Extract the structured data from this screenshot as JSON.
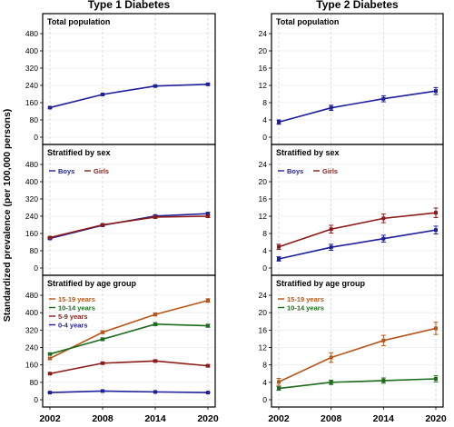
{
  "figure": {
    "shared_ylabel": "Standardized prevalence (per 100,000 persons)",
    "x_ticks": [
      "2002",
      "2008",
      "2014",
      "2020"
    ]
  },
  "chart_data": [
    {
      "type": "line",
      "column_title": "Type 1 Diabetes",
      "title": "Total population",
      "x": [
        2002,
        2008,
        2014,
        2020
      ],
      "ylim": [
        0,
        480
      ],
      "yticks": [
        0,
        80,
        160,
        240,
        320,
        400,
        480
      ],
      "grid": true,
      "legend": "none",
      "series": [
        {
          "name": "",
          "color": "#1f1f9a",
          "values": [
            137,
            198,
            237,
            245
          ],
          "err": [
            3,
            3,
            4,
            4
          ]
        }
      ]
    },
    {
      "type": "line",
      "title": "Stratified by sex",
      "x": [
        2002,
        2008,
        2014,
        2020
      ],
      "ylim": [
        0,
        480
      ],
      "yticks": [
        0,
        80,
        160,
        240,
        320,
        400,
        480
      ],
      "grid": true,
      "legend": "top-left",
      "series": [
        {
          "name": "Boys",
          "color": "#1f1f9a",
          "values": [
            137,
            198,
            241,
            252
          ],
          "err": [
            4,
            4,
            5,
            6
          ]
        },
        {
          "name": "Girls",
          "color": "#8b1a1a",
          "values": [
            141,
            200,
            236,
            240
          ],
          "err": [
            4,
            4,
            5,
            6
          ]
        }
      ]
    },
    {
      "type": "line",
      "title": "Stratified by age group",
      "x": [
        2002,
        2008,
        2014,
        2020
      ],
      "ylim": [
        0,
        480
      ],
      "yticks": [
        0,
        80,
        160,
        240,
        320,
        400,
        480
      ],
      "grid": true,
      "legend": "top-left",
      "series": [
        {
          "name": "15-19 years",
          "color": "#b5571a",
          "values": [
            190,
            310,
            392,
            456
          ],
          "err": [
            5,
            6,
            7,
            8
          ]
        },
        {
          "name": "10-14 years",
          "color": "#1d6b1d",
          "values": [
            210,
            278,
            347,
            340
          ],
          "err": [
            5,
            6,
            7,
            7
          ]
        },
        {
          "name": "5-9 years",
          "color": "#8b1a1a",
          "values": [
            120,
            168,
            178,
            156
          ],
          "err": [
            4,
            4,
            5,
            5
          ]
        },
        {
          "name": "0-4 years",
          "color": "#1f1f9a",
          "values": [
            33,
            40,
            36,
            33
          ],
          "err": [
            2,
            2,
            2,
            2
          ]
        }
      ]
    },
    {
      "type": "line",
      "column_title": "Type 2 Diabetes",
      "title": "Total population",
      "x": [
        2002,
        2008,
        2014,
        2020
      ],
      "ylim": [
        0,
        24
      ],
      "yticks": [
        0,
        4,
        8,
        12,
        16,
        20,
        24
      ],
      "grid": true,
      "legend": "none",
      "series": [
        {
          "name": "",
          "color": "#1f1f9a",
          "values": [
            3.5,
            6.8,
            8.9,
            10.7
          ],
          "err": [
            0.5,
            0.6,
            0.7,
            0.8
          ]
        }
      ]
    },
    {
      "type": "line",
      "title": "Stratified by sex",
      "x": [
        2002,
        2008,
        2014,
        2020
      ],
      "ylim": [
        0,
        24
      ],
      "yticks": [
        0,
        4,
        8,
        12,
        16,
        20,
        24
      ],
      "grid": true,
      "legend": "top-left",
      "series": [
        {
          "name": "Boys",
          "color": "#1f1f9a",
          "values": [
            2.1,
            4.8,
            6.8,
            8.8
          ],
          "err": [
            0.5,
            0.7,
            0.8,
            0.9
          ]
        },
        {
          "name": "Girls",
          "color": "#8b1a1a",
          "values": [
            4.9,
            9.0,
            11.5,
            12.8
          ],
          "err": [
            0.6,
            0.9,
            1.0,
            1.1
          ]
        }
      ]
    },
    {
      "type": "line",
      "title": "Stratified by age group",
      "x": [
        2002,
        2008,
        2014,
        2020
      ],
      "ylim": [
        0,
        24
      ],
      "yticks": [
        0,
        4,
        8,
        12,
        16,
        20,
        24
      ],
      "grid": true,
      "legend": "top-left",
      "series": [
        {
          "name": "15-19 years",
          "color": "#b5571a",
          "values": [
            4.1,
            9.7,
            13.6,
            16.4
          ],
          "err": [
            0.8,
            1.1,
            1.2,
            1.4
          ]
        },
        {
          "name": "10-14 years",
          "color": "#1d6b1d",
          "values": [
            2.6,
            4.0,
            4.4,
            4.8
          ],
          "err": [
            0.4,
            0.5,
            0.6,
            0.7
          ]
        }
      ]
    }
  ]
}
